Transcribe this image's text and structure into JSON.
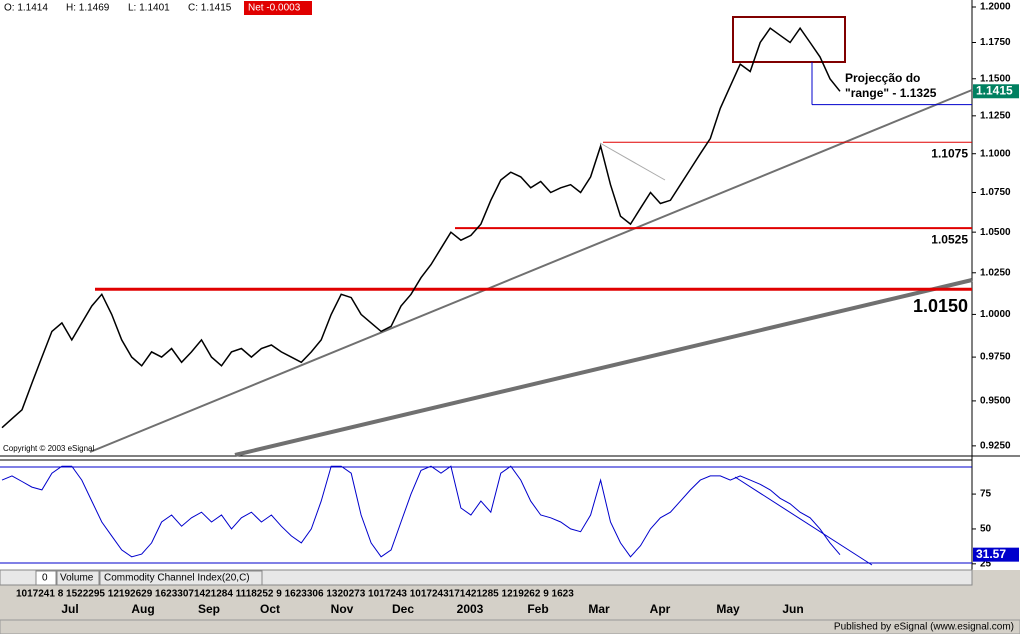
{
  "header": {
    "open": "O: 1.1414",
    "high": "H: 1.1469",
    "low": "L: 1.1401",
    "close": "C: 1.1415",
    "net": "Net -0.0003"
  },
  "copyright": "Copyright © 2003 eSignal",
  "tabs": [
    "0",
    "Volume",
    "Commodity Channel Index(20,C)"
  ],
  "day_row": "1017241 8  1522295  12192629  16233071421284  1118252 9  1623306 1320273  1017243 1017243171421285  1219262 9  1623",
  "months": [
    "Jul",
    "Aug",
    "Sep",
    "Oct",
    "Nov",
    "Dec",
    "2003",
    "Feb",
    "Mar",
    "Apr",
    "May",
    "Jun"
  ],
  "footer": "Published by eSignal (www.esignal.com)",
  "chart_data": [
    {
      "type": "line",
      "log_y": true,
      "color": "#000000",
      "values": [
        0.935,
        0.94,
        0.945,
        0.96,
        0.975,
        0.99,
        0.995,
        0.985,
        0.995,
        1.005,
        1.012,
        1.0,
        0.985,
        0.975,
        0.97,
        0.978,
        0.975,
        0.98,
        0.972,
        0.978,
        0.985,
        0.975,
        0.97,
        0.978,
        0.98,
        0.975,
        0.98,
        0.982,
        0.978,
        0.975,
        0.972,
        0.978,
        0.985,
        1.0,
        1.012,
        1.01,
        1.0,
        0.995,
        0.99,
        0.993,
        1.005,
        1.012,
        1.022,
        1.03,
        1.04,
        1.05,
        1.045,
        1.048,
        1.055,
        1.07,
        1.083,
        1.088,
        1.085,
        1.078,
        1.082,
        1.075,
        1.078,
        1.08,
        1.075,
        1.085,
        1.105,
        1.08,
        1.06,
        1.055,
        1.065,
        1.075,
        1.068,
        1.07,
        1.08,
        1.09,
        1.1,
        1.11,
        1.13,
        1.145,
        1.16,
        1.155,
        1.175,
        1.185,
        1.18,
        1.175,
        1.185,
        1.175,
        1.165,
        1.15,
        1.1415
      ],
      "last_label": "1.1415",
      "ylim": [
        0.92,
        1.205
      ],
      "yticks": [
        {
          "value": 1.2,
          "label": "1.2000"
        },
        {
          "value": 1.175,
          "label": "1.1750"
        },
        {
          "value": 1.15,
          "label": "1.1500"
        },
        {
          "value": 1.125,
          "label": "1.1250"
        },
        {
          "value": 1.1,
          "label": "1.1000"
        },
        {
          "value": 1.075,
          "label": "1.0750"
        },
        {
          "value": 1.05,
          "label": "1.0500"
        },
        {
          "value": 1.025,
          "label": "1.0250"
        },
        {
          "value": 1.0,
          "label": "1.0000"
        },
        {
          "value": 0.975,
          "label": "0.9750"
        },
        {
          "value": 0.95,
          "label": "0.9500"
        },
        {
          "value": 0.925,
          "label": "0.9250"
        }
      ],
      "levels": [
        {
          "value": 1.1075,
          "label": "1.1075"
        },
        {
          "value": 1.0525,
          "label": "1.0525"
        },
        {
          "value": 1.015,
          "label": "1.0150"
        }
      ],
      "projection": 1.1325,
      "annotation": [
        "Projecção do",
        "\"range\" - 1.1325"
      ]
    },
    {
      "type": "line",
      "color": "#0000cc",
      "values": [
        85,
        88,
        84,
        80,
        78,
        90,
        95,
        95,
        85,
        70,
        55,
        45,
        35,
        30,
        32,
        40,
        55,
        60,
        52,
        58,
        62,
        55,
        60,
        50,
        58,
        62,
        55,
        60,
        52,
        45,
        40,
        50,
        70,
        95,
        95,
        90,
        60,
        40,
        30,
        35,
        55,
        75,
        92,
        95,
        90,
        95,
        65,
        60,
        70,
        62,
        90,
        95,
        85,
        70,
        60,
        58,
        55,
        50,
        48,
        60,
        85,
        55,
        40,
        30,
        38,
        50,
        58,
        62,
        70,
        78,
        85,
        88,
        88,
        85,
        88,
        85,
        82,
        78,
        72,
        68,
        62,
        58,
        50,
        40,
        31.57
      ],
      "last_label": "31.57",
      "ylim": [
        22,
        98
      ],
      "yticks": [
        75,
        50,
        25
      ]
    }
  ]
}
